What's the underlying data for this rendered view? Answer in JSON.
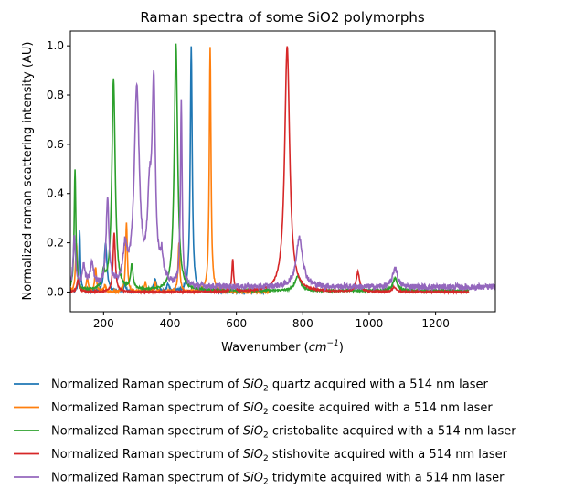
{
  "chart_data": {
    "type": "line",
    "title": "Raman spectra of some SiO2 polymorphs",
    "xlabel_prefix": "Wavenumber (",
    "xlabel_unit": "cm",
    "xlabel_exp": "−1",
    "xlabel_suffix": ")",
    "ylabel": "Normalized raman scattering intensity (AU)",
    "xlim": [
      100,
      1380
    ],
    "ylim": [
      -0.08,
      1.06
    ],
    "xticks": [
      200,
      400,
      600,
      800,
      1000,
      1200
    ],
    "xtick_labels": [
      "200",
      "400",
      "600",
      "800",
      "1000",
      "1200"
    ],
    "yticks": [
      0.0,
      0.2,
      0.4,
      0.6,
      0.8,
      1.0
    ],
    "ytick_labels": [
      "0.0",
      "0.2",
      "0.4",
      "0.6",
      "0.8",
      "1.0"
    ],
    "grid": false,
    "legend_position": "below plot",
    "series": [
      {
        "legend_prefix": "Normalized Raman spectrum of ",
        "legend_formula": "SiO",
        "legend_sub": "2",
        "legend_suffix": " quartz acquired with a 514 nm laser",
        "color": "#1f77b4",
        "x_range": [
          100,
          700
        ],
        "noise": 0.005,
        "baseline": 0.0,
        "peaks": [
          [
            128,
            0.25,
            2.5
          ],
          [
            206,
            0.2,
            5
          ],
          [
            264,
            0.03,
            4
          ],
          [
            355,
            0.05,
            5
          ],
          [
            394,
            0.03,
            4
          ],
          [
            464,
            1.0,
            3.5
          ]
        ]
      },
      {
        "legend_prefix": "Normalized Raman spectrum of ",
        "legend_formula": "SiO",
        "legend_sub": "2",
        "legend_suffix": " coesite acquired with a 514 nm laser",
        "color": "#ff7f0e",
        "x_range": [
          100,
          700
        ],
        "noise": 0.005,
        "baseline": 0.0,
        "peaks": [
          [
            118,
            0.2,
            3
          ],
          [
            151,
            0.06,
            3
          ],
          [
            176,
            0.1,
            3
          ],
          [
            204,
            0.03,
            3
          ],
          [
            269,
            0.28,
            3
          ],
          [
            326,
            0.04,
            3
          ],
          [
            356,
            0.04,
            3
          ],
          [
            427,
            0.2,
            3
          ],
          [
            521,
            1.0,
            3
          ]
        ]
      },
      {
        "legend_prefix": "Normalized Raman spectrum of ",
        "legend_formula": "SiO",
        "legend_sub": "2",
        "legend_suffix": " cristobalite acquired with a 514 nm laser",
        "color": "#2ca02c",
        "x_range": [
          100,
          1300
        ],
        "noise": 0.004,
        "baseline": 0.005,
        "peaks": [
          [
            114,
            0.49,
            3
          ],
          [
            200,
            0.06,
            5
          ],
          [
            230,
            0.86,
            6
          ],
          [
            285,
            0.1,
            4
          ],
          [
            418,
            1.0,
            6
          ],
          [
            785,
            0.06,
            10
          ],
          [
            1078,
            0.05,
            8
          ]
        ]
      },
      {
        "legend_prefix": "Normalized Raman spectrum of ",
        "legend_formula": "SiO",
        "legend_sub": "2",
        "legend_suffix": " stishovite acquired with a 514 nm laser",
        "color": "#d62728",
        "x_range": [
          100,
          1300
        ],
        "noise": 0.003,
        "baseline": 0.0,
        "peaks": [
          [
            123,
            0.05,
            4
          ],
          [
            232,
            0.24,
            4
          ],
          [
            589,
            0.13,
            3
          ],
          [
            753,
            1.0,
            9
          ],
          [
            966,
            0.08,
            6
          ],
          [
            1075,
            0.02,
            6
          ]
        ]
      },
      {
        "legend_prefix": "Normalized Raman spectrum of ",
        "legend_formula": "SiO",
        "legend_sub": "2",
        "legend_suffix": " tridymite acquired with a 514 nm laser",
        "color": "#9467bd",
        "x_range": [
          100,
          1380
        ],
        "noise": 0.012,
        "baseline": 0.02,
        "peaks": [
          [
            112,
            0.2,
            4
          ],
          [
            140,
            0.08,
            5
          ],
          [
            165,
            0.09,
            6
          ],
          [
            212,
            0.35,
            5
          ],
          [
            265,
            0.14,
            7
          ],
          [
            300,
            0.8,
            9
          ],
          [
            338,
            0.3,
            7
          ],
          [
            351,
            0.78,
            6
          ],
          [
            375,
            0.1,
            6
          ],
          [
            434,
            0.74,
            3
          ],
          [
            790,
            0.2,
            12
          ],
          [
            1078,
            0.08,
            8
          ]
        ]
      }
    ]
  }
}
